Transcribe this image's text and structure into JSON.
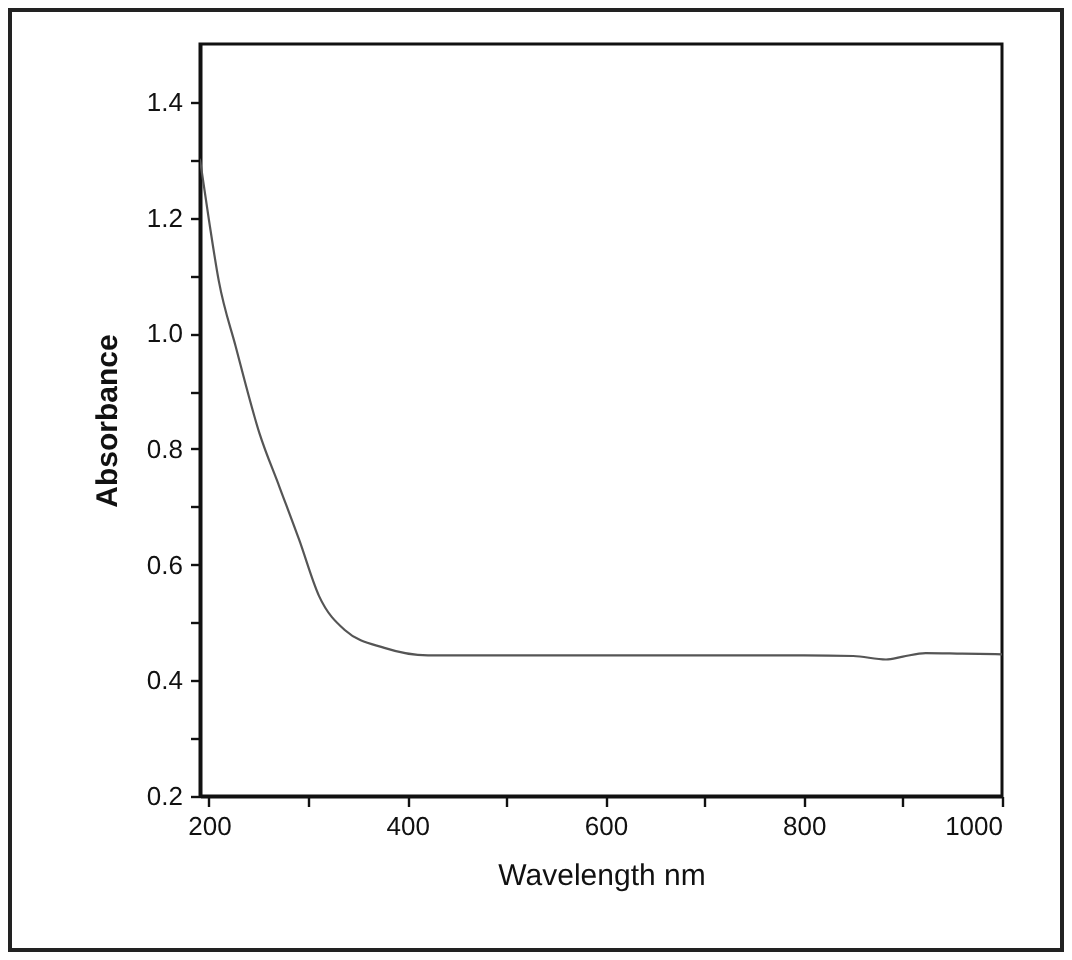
{
  "chart_data": {
    "type": "line",
    "xlabel": "Wavelength nm",
    "ylabel": "Absorbance",
    "x": [
      191,
      200,
      210,
      227,
      251,
      271,
      291,
      311,
      337,
      377,
      421,
      500,
      600,
      700,
      800,
      850,
      883,
      900,
      923,
      960,
      1000
    ],
    "series": [
      {
        "color": "#555555",
        "values": [
          1.3,
          1.196,
          1.09,
          0.977,
          0.827,
          0.735,
          0.643,
          0.546,
          0.487,
          0.456,
          0.443,
          0.443,
          0.443,
          0.443,
          0.443,
          0.442,
          0.436,
          0.441,
          0.447,
          0.446,
          0.445
        ]
      }
    ],
    "xlim": [
      191,
      1000
    ],
    "xticks": [
      200,
      {
        "value": 300,
        "label": null
      },
      400,
      {
        "value": 500,
        "label": null
      },
      600,
      {
        "value": 700,
        "label": null
      },
      800,
      {
        "value": 900,
        "label": null
      },
      1000
    ],
    "ylim": [
      0.2,
      1.5
    ],
    "yticks": [
      {
        "value": 0.2,
        "label": "0.2"
      },
      {
        "value": 0.3,
        "label": null
      },
      {
        "value": 0.4,
        "label": "0.4"
      },
      {
        "value": 0.5,
        "label": null
      },
      {
        "value": 0.6,
        "label": "0.6"
      },
      {
        "value": 0.7,
        "label": null
      },
      {
        "value": 0.8,
        "label": "0.8"
      },
      {
        "value": 0.9,
        "label": null
      },
      {
        "value": 1.0,
        "label": "1.0"
      },
      {
        "value": 1.1,
        "label": null
      },
      {
        "value": 1.2,
        "label": "1.2"
      },
      {
        "value": 1.3,
        "label": null
      },
      {
        "value": 1.4,
        "label": "1.4"
      }
    ],
    "grid": false,
    "marker": "none",
    "line_style": "solid"
  }
}
